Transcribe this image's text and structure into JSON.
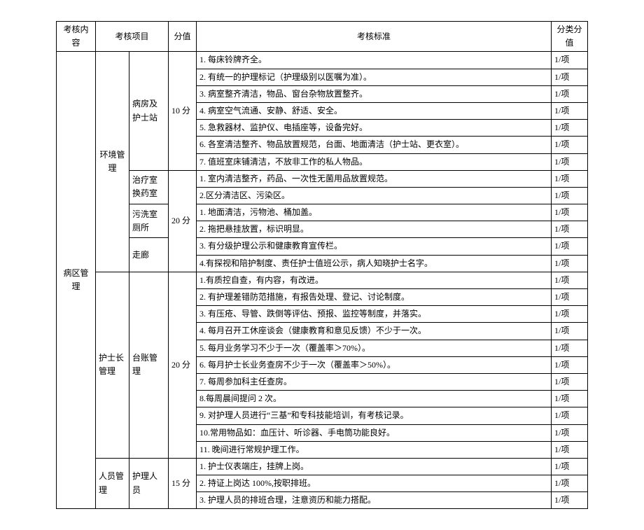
{
  "headers": {
    "content": "考核内容",
    "project": "考核项目",
    "score": "分值",
    "standard": "考核标准",
    "detail": "分类分值"
  },
  "col1": "病区管理",
  "group_env": "环境管理",
  "sub_ward": "病房及护士站",
  "score_10": "10 分",
  "env_ward": {
    "r1": "1. 每床铃牌齐全。",
    "r2": "2. 有统一的护理标记（护理级别以医嘱为准）。",
    "r3": "3. 病室整齐清洁，物品、窗台杂物放置整齐。",
    "r4": "4. 病室空气流通、安静、舒适、安全。",
    "r5": "5. 急救器材、监护仪、电插座等，设备完好。",
    "r6": "6. 各室清洁整齐、物品放置规范，台面、地面清洁（护士站、更衣室）。",
    "r7": "7. 值班室床铺清洁，不放非工作的私人物品。"
  },
  "sub_treat": "治疗室换药室",
  "sub_wash": "污洗室厕所",
  "sub_corr": "走廊",
  "score_20a": "20 分",
  "env_other": {
    "r1": "1. 室内清洁整齐，药品、一次性无菌用品放置规范。",
    "r2": "2.区分清洁区、污染区。",
    "r3": "1. 地面清洁，污物池、桶加盖。",
    "r4": "2. 拖把悬挂放置，标识明显。",
    "r5": "3. 有分级护理公示和健康教育宣传栏。",
    "r6": "4.有探视和陪护制度、责任护士值班公示，病人知晓护士名字。"
  },
  "group_headnurse": "护士长管理",
  "sub_ledger": "台账管理",
  "score_20b": "20 分",
  "ledger": {
    "r1": "1.有质控自查，有内容，有改进。",
    "r2": "2. 有护理差错防范措施，有报告处理、登记、讨论制度。",
    "r3": "3. 有压疮、导管、跌倒等评估、预报、监控等制度，并落实。",
    "r4": "4. 每月召开工休座谈会（健康教育和意见反馈）不少于一次。",
    "r5": "5. 每月业务学习不少于一次（覆盖率＞70%）。",
    "r6": "6. 每月护士长业务查房不少于一次（覆盖率＞50%）。",
    "r7": "7. 每周参加科主任查房。",
    "r8": "8.每周晨间提问 2 次。",
    "r9": "9. 对护理人员进行“三基”和专科技能培训，有考核记录。",
    "r10": "10.常用物品如：血压计、听诊器、手电筒功能良好。",
    "r11": "11. 晚间进行常规护理工作。"
  },
  "group_person": "人员管理",
  "sub_nurse": "护理人员",
  "score_15": "15 分",
  "person": {
    "r1": "1. 护士仪表端庄，挂牌上岗。",
    "r2": "2. 持证上岗达 100%,按职排班。",
    "r3": "3. 护理人员的排班合理，注意资历和能力搭配。"
  },
  "detail": "1/项"
}
